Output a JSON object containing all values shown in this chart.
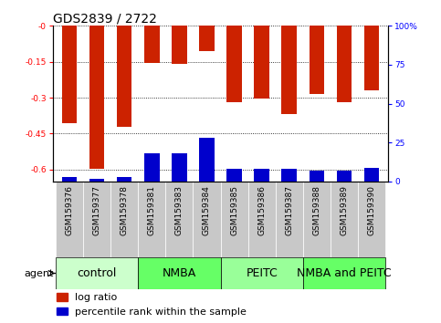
{
  "title": "GDS2839 / 2722",
  "samples": [
    "GSM159376",
    "GSM159377",
    "GSM159378",
    "GSM159381",
    "GSM159383",
    "GSM159384",
    "GSM159385",
    "GSM159386",
    "GSM159387",
    "GSM159388",
    "GSM159389",
    "GSM159390"
  ],
  "log_ratio": [
    -0.405,
    -0.595,
    -0.42,
    -0.155,
    -0.16,
    -0.105,
    -0.32,
    -0.305,
    -0.37,
    -0.285,
    -0.32,
    -0.27
  ],
  "percentile_rank_pct": [
    3.0,
    1.5,
    3.0,
    18.0,
    18.0,
    28.0,
    8.0,
    8.0,
    8.0,
    7.0,
    7.0,
    9.0
  ],
  "groups": [
    {
      "label": "control",
      "start": 0,
      "end": 3,
      "color": "#ccffcc"
    },
    {
      "label": "NMBA",
      "start": 3,
      "end": 6,
      "color": "#66ff66"
    },
    {
      "label": "PEITC",
      "start": 6,
      "end": 9,
      "color": "#99ff99"
    },
    {
      "label": "NMBA and PEITC",
      "start": 9,
      "end": 12,
      "color": "#66ff66"
    }
  ],
  "ylim_left": [
    -0.65,
    0.0
  ],
  "ylim_right": [
    0,
    100
  ],
  "left_yticks": [
    -0.0,
    -0.15,
    -0.3,
    -0.45,
    -0.6
  ],
  "right_yticks": [
    0,
    25,
    50,
    75,
    100
  ],
  "bar_width": 0.55,
  "bar_color_red": "#cc2200",
  "bar_color_blue": "#0000cc",
  "background_plot": "#ffffff",
  "tick_bg_color": "#bbbbbb",
  "title_fontsize": 10,
  "tick_fontsize": 6.5,
  "agent_fontsize": 8,
  "group_fontsize": 9,
  "legend_fontsize": 8
}
